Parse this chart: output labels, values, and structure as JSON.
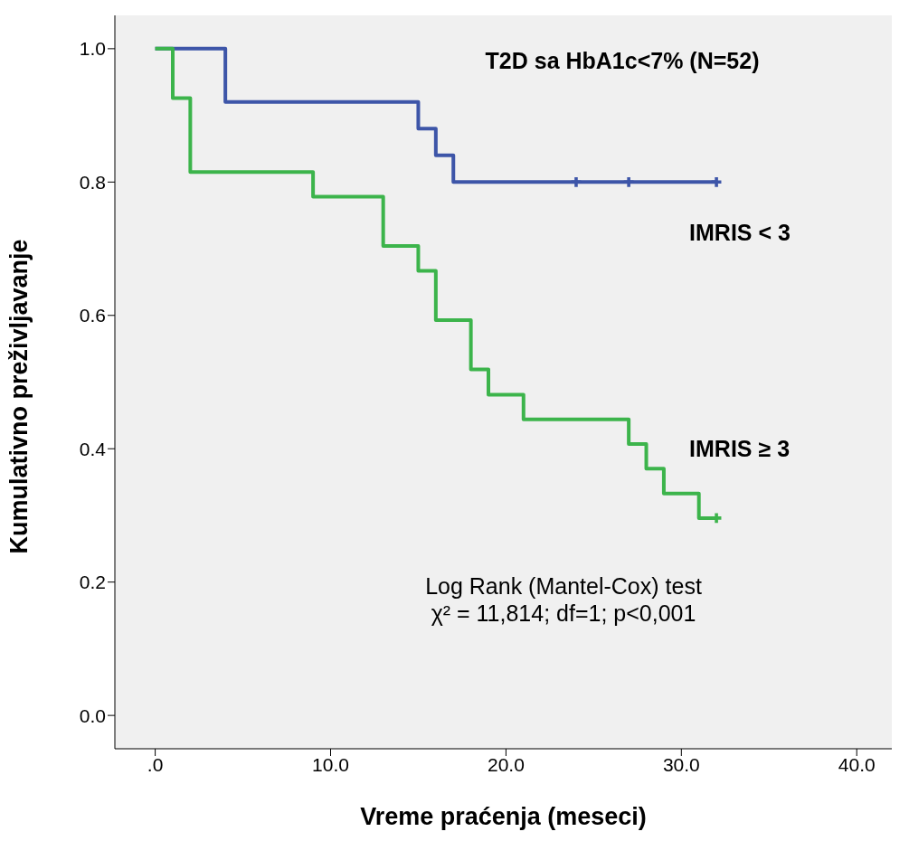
{
  "chart_data": {
    "type": "step",
    "title": "T2D sa HbA1c<7% (N=52)",
    "xlabel": "Vreme praćenja (meseci)",
    "ylabel": "Kumulativno preživljavanje",
    "annotations": [
      "Log Rank (Mantel-Cox) test",
      "χ² = 11,814; df=1; p<0,001"
    ],
    "xlim": [
      -2.3,
      42
    ],
    "xticks": [
      {
        "value": 0,
        "label": ".0"
      },
      {
        "value": 10,
        "label": "10.0"
      },
      {
        "value": 20,
        "label": "20.0"
      },
      {
        "value": 30,
        "label": "30.0"
      },
      {
        "value": 40,
        "label": "40.0"
      }
    ],
    "ylim": [
      -0.05,
      1.05
    ],
    "yticks": [
      {
        "value": 0,
        "label": "0.0"
      },
      {
        "value": 0.2,
        "label": "0.2"
      },
      {
        "value": 0.4,
        "label": "0.4"
      },
      {
        "value": 0.6,
        "label": "0.6"
      },
      {
        "value": 0.8,
        "label": "0.8"
      },
      {
        "value": 1,
        "label": "1.0"
      }
    ],
    "grid": false,
    "legend": false,
    "line_style": "solid",
    "marker": "none",
    "series": [
      {
        "name": "IMRIS < 3",
        "color": "#3d55a8",
        "x": [
          0,
          4,
          15,
          16,
          17,
          32
        ],
        "values": [
          1,
          0.92,
          0.88,
          0.84,
          0.8,
          0.8
        ]
      },
      {
        "name": "IMRIS ≥ 3",
        "color": "#3cb44b",
        "x": [
          0,
          1,
          2,
          9,
          13,
          15,
          16,
          18,
          19,
          21,
          27,
          28,
          29,
          31,
          32
        ],
        "values": [
          1,
          0.926,
          0.815,
          0.778,
          0.704,
          0.667,
          0.593,
          0.519,
          0.481,
          0.444,
          0.407,
          0.37,
          0.333,
          0.296,
          0.296
        ]
      },
      {
        "type": "scatter",
        "marker": "cross",
        "color": "#3d55a8",
        "x": [
          24,
          27,
          32
        ],
        "values": [
          0.8,
          0.8,
          0.8
        ]
      },
      {
        "type": "scatter",
        "marker": "cross",
        "color": "#3cb44b",
        "x": [
          32
        ],
        "values": [
          0.296
        ]
      }
    ]
  }
}
